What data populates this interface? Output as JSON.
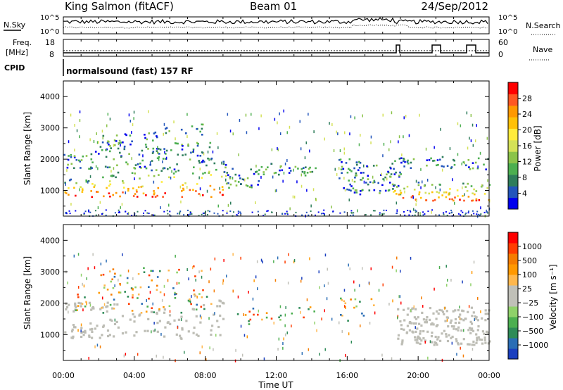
{
  "header": {
    "station": "King Salmon (fitACF)",
    "beam": "Beam 01",
    "date": "24/Sep/2012"
  },
  "status_panel": {
    "nsky_label": "N.Sky",
    "nsky_ticks": [
      "10^5",
      "10^0"
    ],
    "nsearch_label": "N.Search",
    "nsearch_ticks": [
      "10^5",
      "10^0"
    ],
    "freq_label_line1": "Freq.",
    "freq_label_line2": "[MHz]",
    "freq_ticks": [
      "18",
      "8"
    ],
    "nave_label": "Nave",
    "nave_ticks": [
      "60",
      "0"
    ],
    "cpid_label": "CPID",
    "cpid_text": "normalsound (fast) 157 RF"
  },
  "chart_data": [
    {
      "type": "heatmap",
      "panel": "power",
      "ylabel": "Slant Range [km]",
      "yticks": [
        "1000",
        "2000",
        "3000",
        "4000"
      ],
      "ytick_values": [
        1000,
        2000,
        3000,
        4000
      ],
      "ylim": [
        180,
        4500
      ],
      "xlim_hours": [
        0,
        24
      ],
      "colorbar_label": "Power [dB]",
      "colorbar_ticks": [
        "4",
        "8",
        "12",
        "16",
        "20",
        "24",
        "28"
      ],
      "colorbar_colors": [
        "#0000ee",
        "#2255bb",
        "#2e7d5b",
        "#4caf50",
        "#8bc34a",
        "#d4e157",
        "#ffeb3b",
        "#ffc107",
        "#ff9800",
        "#ff5722",
        "#ff0000"
      ],
      "scatter_bands": [
        {
          "x0": 0.0,
          "x1": 9.3,
          "r0": 820,
          "r1": 1400,
          "r1_end": 2100,
          "hi": true
        },
        {
          "x0": 0.0,
          "x1": 8.5,
          "r0": 1700,
          "r1": 2200,
          "r1_end": 2600,
          "hi": false
        },
        {
          "x0": 2.0,
          "x1": 8.0,
          "r0": 2300,
          "r1": 2800,
          "r1_end": 3200,
          "hi": false
        },
        {
          "x0": 9.0,
          "x1": 11.0,
          "r0": 1100,
          "r1": 1900,
          "r1_end": 1700,
          "hi": false
        },
        {
          "x0": 11.0,
          "x1": 14.5,
          "r0": 1500,
          "r1": 1900,
          "r1_end": 1800,
          "hi": false
        },
        {
          "x0": 15.5,
          "x1": 19.0,
          "r0": 900,
          "r1": 2100,
          "r1_end": 1700,
          "hi": false
        },
        {
          "x0": 18.5,
          "x1": 24.0,
          "r0": 700,
          "r1": 1300,
          "r1_end": 1300,
          "hi": true
        },
        {
          "x0": 18.5,
          "x1": 24.0,
          "r0": 1700,
          "r1": 2100,
          "r1_end": 2100,
          "hi": false
        }
      ]
    },
    {
      "type": "heatmap",
      "panel": "velocity",
      "ylabel": "Slant Range [km]",
      "yticks": [
        "1000",
        "2000",
        "3000",
        "4000"
      ],
      "ytick_values": [
        1000,
        2000,
        3000,
        4000
      ],
      "ylim": [
        180,
        4500
      ],
      "xlim_hours": [
        0,
        24
      ],
      "xticks": [
        "00:00",
        "04:00",
        "08:00",
        "12:00",
        "16:00",
        "20:00",
        "00:00"
      ],
      "xlabel": "Time UT",
      "colorbar_label": "Velocity [m s⁻¹]",
      "colorbar_ticks": [
        "1000",
        "500",
        "100",
        "25",
        "−25",
        "−100",
        "−500",
        "−1000"
      ],
      "colorbar_colors": [
        "#1a3fbf",
        "#2a6db5",
        "#2e8b57",
        "#4caf50",
        "#8fd16a",
        "#c0c0b8",
        "#c0c0b8",
        "#ffb74d",
        "#ff9800",
        "#f57c00",
        "#ff3d00",
        "#ff0000"
      ],
      "ground_scatter_color": "#bdbdb5",
      "ground_bands": [
        {
          "x0": 0.0,
          "x1": 9.0,
          "r0": 900,
          "r1": 1300,
          "r1_end": 2200
        },
        {
          "x0": 0.0,
          "x1": 3.0,
          "r0": 1750,
          "r1": 2050,
          "r1_end": 2050
        },
        {
          "x0": 18.8,
          "x1": 24.0,
          "r0": 700,
          "r1": 1900,
          "r1_end": 1900
        }
      ]
    }
  ]
}
